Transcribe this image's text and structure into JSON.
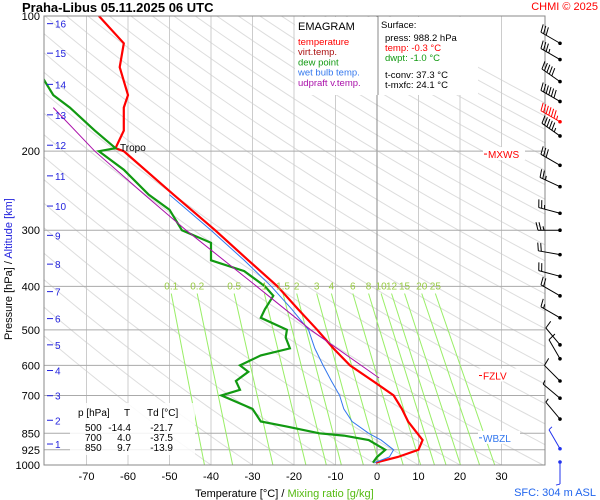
{
  "chart_data": {
    "type": "line",
    "title": "Praha-Libus    05.11.2025 06 UTC",
    "credit": "CHMI © 2025",
    "xlabel": "Temperature [°C]",
    "xlabel_sep": "/",
    "xlabel2": "Mixing ratio [g/kg]",
    "ylabel": "Pressure [hPa]",
    "ylabel_sep": "/",
    "ylabel2": "Altitude [km]",
    "xlim": [
      -78,
      30
    ],
    "ylim": [
      1000,
      100
    ],
    "x_ticks": [
      -70,
      -60,
      -50,
      -40,
      -30,
      -20,
      -10,
      0,
      10,
      20,
      30
    ],
    "p_ticks": [
      100,
      200,
      300,
      400,
      500,
      600,
      700,
      850,
      925,
      1000
    ],
    "alt_ticks": [
      {
        "km": "1",
        "p": 898
      },
      {
        "km": "2",
        "p": 795
      },
      {
        "km": "3",
        "p": 701
      },
      {
        "km": "4",
        "p": 616
      },
      {
        "km": "5",
        "p": 540
      },
      {
        "km": "6",
        "p": 472
      },
      {
        "km": "7",
        "p": 411
      },
      {
        "km": "8",
        "p": 357
      },
      {
        "km": "9",
        "p": 308
      },
      {
        "km": "10",
        "p": 265
      },
      {
        "km": "11",
        "p": 227
      },
      {
        "km": "12",
        "p": 194
      },
      {
        "km": "13",
        "p": 166
      },
      {
        "km": "14",
        "p": 142
      },
      {
        "km": "15",
        "p": 121
      },
      {
        "km": "16",
        "p": 104
      }
    ],
    "mixing_ratio_labels": [
      "0.1",
      "0.2",
      "0.5",
      "1",
      "1.5",
      "2",
      "3",
      "4",
      "6",
      "8",
      "10",
      "12",
      "15",
      "20",
      "25"
    ],
    "series": [
      {
        "name": "temperature",
        "color": "#ff0000",
        "p": [
          988,
          960,
          925,
          880,
          850,
          800,
          750,
          700,
          650,
          600,
          550,
          500,
          450,
          400,
          350,
          300,
          250,
          200,
          197,
          180,
          160,
          150,
          130,
          115,
          100
        ],
        "t": [
          -0.3,
          5,
          10,
          11,
          9.7,
          7.5,
          6,
          4.0,
          -1,
          -6.5,
          -10.5,
          -14.4,
          -19,
          -24,
          -31,
          -39,
          -49,
          -61,
          -63,
          -61,
          -61,
          -60,
          -62,
          -61,
          -67
        ]
      },
      {
        "name": "dew point",
        "color": "#119911",
        "p": [
          988,
          960,
          925,
          880,
          860,
          850,
          820,
          800,
          750,
          700,
          680,
          650,
          620,
          600,
          570,
          550,
          520,
          500,
          470,
          450,
          420,
          400,
          370,
          350,
          320,
          300,
          270,
          250,
          220,
          200,
          197,
          180,
          160,
          150,
          140,
          130
        ],
        "t": [
          -1.0,
          0,
          2,
          -2,
          -8,
          -13.9,
          -22,
          -28,
          -30,
          -37.5,
          -33,
          -34,
          -31,
          -33,
          -28,
          -21,
          -22,
          -21.7,
          -28,
          -27,
          -25,
          -27,
          -32,
          -40,
          -40,
          -47,
          -50,
          -55,
          -61,
          -67,
          -63,
          -68,
          -74,
          -78,
          -80,
          -82
        ]
      },
      {
        "name": "wet bulb temp.",
        "color": "#3377ee",
        "p": [
          988,
          960,
          925,
          880,
          850,
          800,
          750,
          700,
          650,
          600,
          550,
          500,
          450,
          400,
          350,
          300,
          250
        ],
        "t": [
          -0.6,
          3,
          4,
          1,
          -2,
          -6,
          -8,
          -9,
          -11,
          -13,
          -15,
          -16.5,
          -20.5,
          -25.5,
          -32,
          -40,
          -50
        ]
      },
      {
        "name": "updraft v.temp.",
        "color": "#aa11aa",
        "p": [
          640,
          500,
          400,
          300,
          250,
          200,
          160
        ],
        "t": [
          0.5,
          -16,
          -29,
          -46,
          -56,
          -68,
          -78
        ]
      }
    ],
    "legend_title": "EMAGRAM",
    "legend": [
      {
        "label": "temperature",
        "color": "#ff0000"
      },
      {
        "label": "virt.temp.",
        "color": "#aa1111"
      },
      {
        "label": "dew point",
        "color": "#119911"
      },
      {
        "label": "wet bulb temp.",
        "color": "#3377ee"
      },
      {
        "label": "udpraft v.temp.",
        "color": "#aa11aa"
      }
    ],
    "surface": {
      "title": "Surface:",
      "press": "press: 988.2 hPa",
      "temp": "temp: -0.3 °C",
      "dwpt": "dwpt: -1.0 °C",
      "tconv": "t-conv: 37.3 °C",
      "tmxfc": "t-mxfc: 24.1 °C"
    },
    "table": {
      "headers": [
        "p [hPa]",
        "T",
        "Td [°C]"
      ],
      "rows": [
        [
          "500",
          "-14.4",
          "-21.7"
        ],
        [
          "700",
          "4.0",
          "-37.5"
        ],
        [
          "850",
          "9.7",
          "-13.9"
        ]
      ]
    },
    "annotations": [
      {
        "text": "Tropo",
        "p": 197,
        "color": "#000000"
      },
      {
        "text": "MXWS",
        "p": 203,
        "color": "#ff0000"
      },
      {
        "text": "FZLV",
        "p": 632,
        "color": "#ff0000"
      },
      {
        "text": "WBZL",
        "p": 870,
        "color": "#3377ee"
      }
    ],
    "sfc_label": "SFC: 304 m ASL",
    "wind_barbs": [
      {
        "p": 115,
        "dir": 300,
        "kt": 30
      },
      {
        "p": 125,
        "dir": 300,
        "kt": 35
      },
      {
        "p": 140,
        "dir": 305,
        "kt": 50
      },
      {
        "p": 155,
        "dir": 300,
        "kt": 60
      },
      {
        "p": 172,
        "dir": 300,
        "kt": 65,
        "max": true
      },
      {
        "p": 185,
        "dir": 305,
        "kt": 55
      },
      {
        "p": 215,
        "dir": 300,
        "kt": 30
      },
      {
        "p": 240,
        "dir": 295,
        "kt": 25
      },
      {
        "p": 275,
        "dir": 285,
        "kt": 25
      },
      {
        "p": 300,
        "dir": 270,
        "kt": 25
      },
      {
        "p": 340,
        "dir": 280,
        "kt": 20
      },
      {
        "p": 380,
        "dir": 285,
        "kt": 20
      },
      {
        "p": 420,
        "dir": 300,
        "kt": 20
      },
      {
        "p": 470,
        "dir": 300,
        "kt": 15
      },
      {
        "p": 540,
        "dir": 320,
        "kt": 10
      },
      {
        "p": 580,
        "dir": 330,
        "kt": 10
      },
      {
        "p": 650,
        "dir": 315,
        "kt": 10
      },
      {
        "p": 710,
        "dir": 310,
        "kt": 5
      },
      {
        "p": 790,
        "dir": 320,
        "kt": 5
      },
      {
        "p": 920,
        "dir": 330,
        "kt": 5
      },
      {
        "p": 985,
        "dir": 180,
        "kt": 5
      }
    ]
  }
}
